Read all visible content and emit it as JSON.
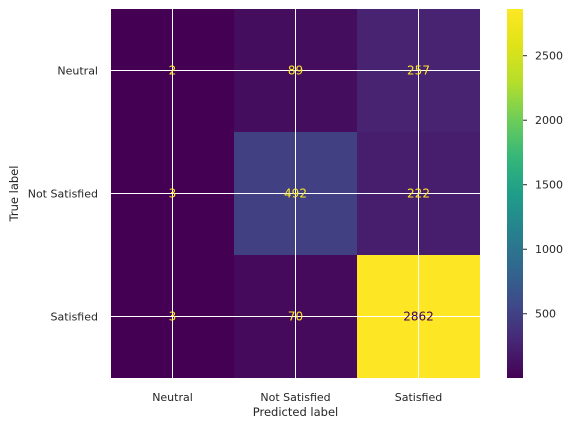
{
  "chart_data": {
    "type": "heatmap",
    "title": "",
    "xlabel": "Predicted label",
    "ylabel": "True label",
    "x_categories": [
      "Neutral",
      "Not Satisfied",
      "Satisfied"
    ],
    "y_categories": [
      "Neutral",
      "Not Satisfied",
      "Satisfied"
    ],
    "values": [
      [
        2,
        89,
        257
      ],
      [
        3,
        492,
        222
      ],
      [
        3,
        70,
        2862
      ]
    ],
    "colormap": "viridis",
    "value_range": [
      2,
      2862
    ],
    "colorbar_ticks": [
      500,
      1000,
      1500,
      2000,
      2500
    ],
    "grid": true,
    "label_colors": {
      "on_dark": "#fde725",
      "on_light": "#440154"
    },
    "grid_color": "#ffffff"
  }
}
